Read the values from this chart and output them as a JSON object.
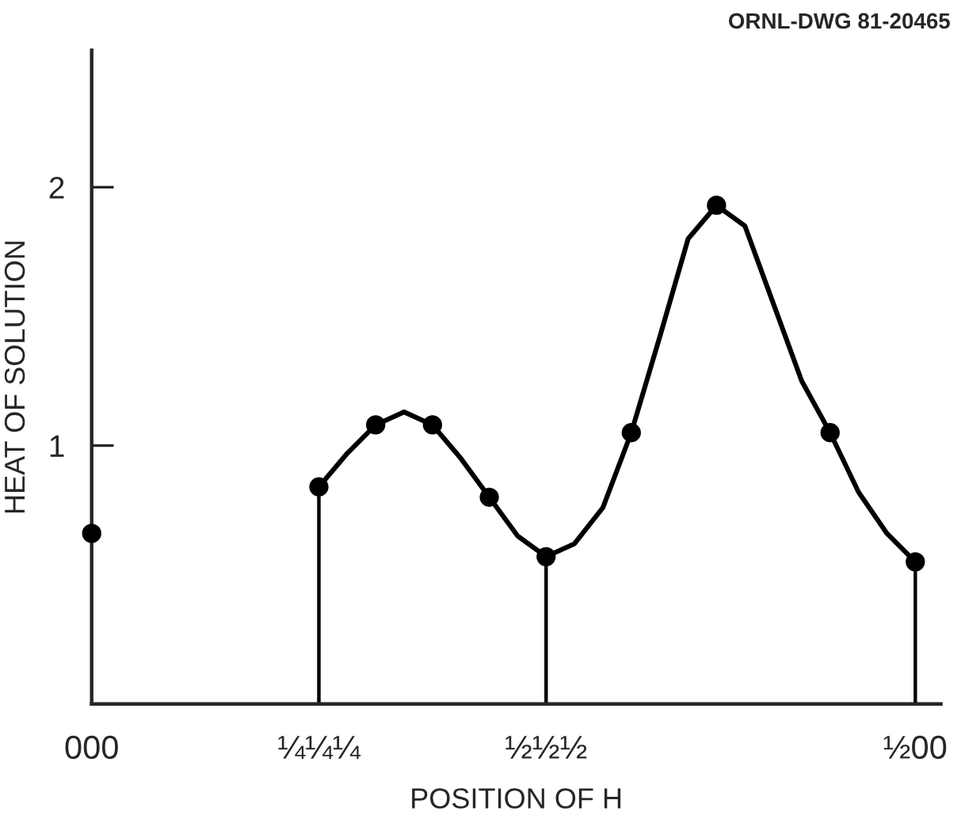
{
  "chart_data": {
    "type": "line",
    "xlabel": "POSITION OF H",
    "ylabel": "HEAT OF SOLUTION",
    "annotations": [
      "ORNL-DWG 81-20465"
    ],
    "categories": [
      "000",
      null,
      null,
      null,
      null,
      null,
      null,
      null,
      "¼¼¼",
      null,
      null,
      null,
      null,
      null,
      null,
      null,
      "½½½",
      null,
      null,
      null,
      null,
      null,
      null,
      null,
      null,
      null,
      null,
      null,
      null,
      "½00"
    ],
    "ylim": [
      0,
      2.53
    ],
    "yticks": [
      1,
      2
    ],
    "grid": false,
    "series": [
      {
        "type": "scatter",
        "color": "#000000",
        "marker": "circle",
        "values": [
          0.66,
          null,
          null,
          null,
          null,
          null,
          null,
          null,
          null,
          null,
          1.08,
          null,
          1.08,
          null,
          0.8,
          null,
          null,
          null,
          null,
          1.05,
          null,
          null,
          1.93,
          null,
          null,
          null,
          1.05,
          null,
          null,
          null
        ]
      },
      {
        "color": "#000000",
        "values": [
          null,
          null,
          null,
          null,
          null,
          null,
          null,
          null,
          0.84,
          0.97,
          1.08,
          1.13,
          1.08,
          0.95,
          0.8,
          0.65,
          0.57,
          0.62,
          0.76,
          1.05,
          1.42,
          1.8,
          1.93,
          1.85,
          1.55,
          1.25,
          1.05,
          0.82,
          0.66,
          0.55
        ]
      },
      {
        "type": "lollipop",
        "color": "#000000",
        "marker": "circle",
        "values": [
          null,
          null,
          null,
          null,
          null,
          null,
          null,
          null,
          0.84,
          null,
          null,
          null,
          null,
          null,
          null,
          null,
          0.57,
          null,
          null,
          null,
          null,
          null,
          null,
          null,
          null,
          null,
          null,
          null,
          null,
          0.55
        ]
      }
    ]
  }
}
